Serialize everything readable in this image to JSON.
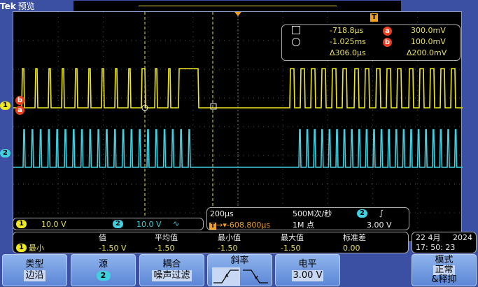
{
  "header": {
    "brand": "Tek",
    "mode": "预览"
  },
  "cursors": {
    "sq_time": "-718.8µs",
    "circ_time": "-1.025ms",
    "delta_time": "Δ306.0µs",
    "a_label": "a",
    "a_value": "300.0mV",
    "b_label": "b",
    "b_value": "100.0mV",
    "delta_volt": "Δ200.0mV"
  },
  "markers": {
    "ch1": "1",
    "ch2": "2",
    "a": "a",
    "b": "b",
    "trigger": "T"
  },
  "channels": {
    "ch1_scale": "10.0 V",
    "ch2_scale": "10.0 V",
    "ch2_coupling_icon": "∿"
  },
  "timebase": {
    "scale": "200µs",
    "rate": "500M次/秒",
    "trig_source": "2",
    "trig_slope_icon": "∫",
    "trig_pos": "-608.800µs",
    "points": "1M 点",
    "trig_level": "3.00 V"
  },
  "measure": {
    "headers": [
      "值",
      "平均值",
      "最小值",
      "最大值",
      "标准差"
    ],
    "channel": "1",
    "name": "最小",
    "values": [
      "-1.50 V",
      "-1.50",
      "-1.50",
      "-1.50",
      "0.00"
    ]
  },
  "datetime": {
    "date": "22 4月",
    "year": "2024",
    "time": "17: 50: 23"
  },
  "menu": [
    {
      "title": "类型",
      "value": "边沿"
    },
    {
      "title": "源",
      "value": "2"
    },
    {
      "title": "耦合",
      "value": "噪声过滤"
    },
    {
      "title": "斜率",
      "value": ""
    },
    {
      "title": "电平",
      "value": "3.00 V"
    },
    {
      "title": "模式",
      "value": "正常",
      "extra": "&释抑"
    }
  ],
  "colors": {
    "ch1": "#f0e820",
    "ch2": "#40d0e0",
    "background": "#3b4fa3"
  }
}
